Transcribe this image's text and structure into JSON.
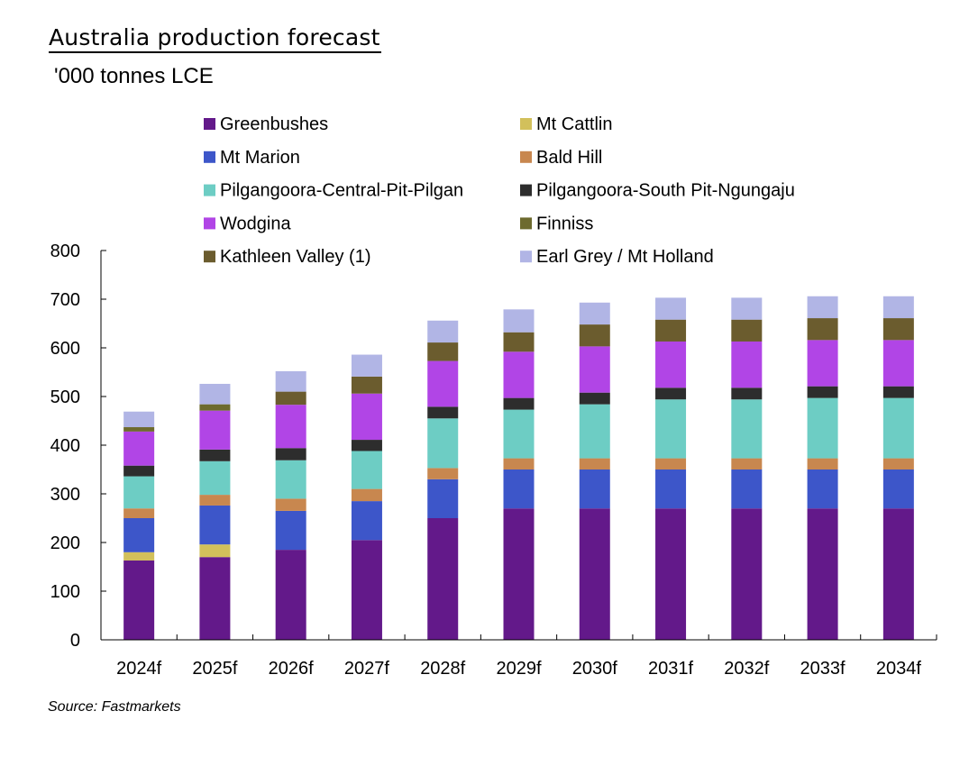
{
  "header": {
    "title": "Australia production forecast",
    "subtitle": "'000 tonnes LCE"
  },
  "footer": {
    "source": "Source: Fastmarkets"
  },
  "chart_data": {
    "type": "bar",
    "stacked": true,
    "title": "Australia production forecast",
    "ylabel": "'000 tonnes LCE",
    "xlabel": "",
    "ylim": [
      0,
      800
    ],
    "yticks": [
      0,
      100,
      200,
      300,
      400,
      500,
      600,
      700,
      800
    ],
    "grid": false,
    "legend_position": "top",
    "categories": [
      "2024f",
      "2025f",
      "2026f",
      "2027f",
      "2028f",
      "2029f",
      "2030f",
      "2031f",
      "2032f",
      "2033f",
      "2034f"
    ],
    "series": [
      {
        "name": "Greenbushes",
        "color": "#63198a",
        "values": [
          163,
          170,
          185,
          205,
          250,
          270,
          270,
          270,
          270,
          270,
          270
        ]
      },
      {
        "name": "Mt Cattlin",
        "color": "#d2c05b",
        "values": [
          17,
          26,
          0,
          0,
          0,
          0,
          0,
          0,
          0,
          0,
          0
        ]
      },
      {
        "name": "Mt Marion",
        "color": "#3d56c9",
        "values": [
          70,
          80,
          80,
          80,
          80,
          80,
          80,
          80,
          80,
          80,
          80
        ]
      },
      {
        "name": "Bald Hill",
        "color": "#c8874f",
        "values": [
          20,
          22,
          25,
          25,
          23,
          23,
          23,
          23,
          23,
          23,
          23
        ]
      },
      {
        "name": "Pilgangoora-Central-Pit-Pilgan",
        "color": "#6dcdc4",
        "values": [
          66,
          69,
          79,
          78,
          102,
          100,
          111,
          121,
          121,
          124,
          124
        ]
      },
      {
        "name": "Pilgangoora-South Pit-Ngungaju",
        "color": "#2d2d2d",
        "values": [
          22,
          24,
          25,
          23,
          24,
          24,
          24,
          24,
          24,
          24,
          24
        ]
      },
      {
        "name": "Wodgina",
        "color": "#b145e6",
        "values": [
          70,
          80,
          89,
          95,
          94,
          95,
          95,
          95,
          95,
          95,
          95
        ]
      },
      {
        "name": "Finniss",
        "color": "#6d6a2e",
        "values": [
          9,
          13,
          0,
          0,
          0,
          0,
          0,
          0,
          0,
          0,
          0
        ]
      },
      {
        "name": "Kathleen Valley (1)",
        "color": "#6b5c2e",
        "values": [
          0,
          0,
          27,
          35,
          38,
          40,
          45,
          45,
          45,
          45,
          45
        ]
      },
      {
        "name": "Earl Grey / Mt Holland",
        "color": "#b1b5e5",
        "values": [
          32,
          42,
          42,
          45,
          45,
          47,
          45,
          45,
          45,
          45,
          45
        ]
      }
    ]
  }
}
